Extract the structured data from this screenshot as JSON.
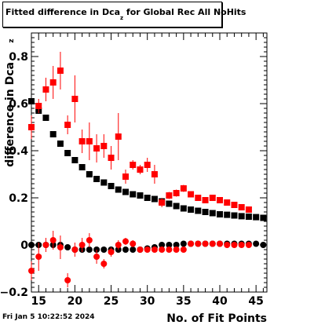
{
  "title": {
    "prefix": "Fitted difference in Dca",
    "subscript": "z",
    "suffix": " for Global Rec All NoHits"
  },
  "timestamp": "Fri Jan  5 10:22:52 2024",
  "colors": {
    "black_series": "#000000",
    "red_series": "#ff0000",
    "axis": "#000000"
  },
  "chart_data": {
    "type": "scatter",
    "title": "Fitted difference in Dca_z for Global Rec All NoHits",
    "xlabel": "No. of Fit Points",
    "ylabel": "difference in Dca",
    "ylabel_superscript": "z",
    "xlim": [
      14,
      46.5
    ],
    "ylim": [
      -0.2,
      0.9
    ],
    "xticks": [
      15,
      20,
      25,
      30,
      35,
      40,
      45
    ],
    "yticks": [
      -0.2,
      0,
      0.2,
      0.4,
      0.6,
      0.8
    ],
    "grid": false,
    "series": [
      {
        "color": "#000000",
        "marker": "square",
        "x": [
          14,
          15,
          16,
          17,
          18,
          19,
          20,
          21,
          22,
          23,
          24,
          25,
          26,
          27,
          28,
          29,
          30,
          31,
          32,
          33,
          34,
          35,
          36,
          37,
          38,
          39,
          40,
          41,
          42,
          43,
          44,
          45,
          46
        ],
        "y": [
          0.61,
          0.57,
          0.54,
          0.47,
          0.43,
          0.39,
          0.36,
          0.33,
          0.3,
          0.28,
          0.265,
          0.25,
          0.235,
          0.225,
          0.215,
          0.21,
          0.2,
          0.195,
          0.185,
          0.175,
          0.165,
          0.155,
          0.15,
          0.145,
          0.14,
          0.135,
          0.13,
          0.128,
          0.125,
          0.122,
          0.12,
          0.118,
          0.115
        ],
        "err": [
          0,
          0,
          0,
          0,
          0,
          0,
          0,
          0,
          0,
          0,
          0,
          0,
          0,
          0,
          0,
          0,
          0,
          0,
          0,
          0,
          0,
          0,
          0,
          0,
          0,
          0,
          0,
          0,
          0,
          0,
          0,
          0,
          0
        ]
      },
      {
        "color": "#ff0000",
        "marker": "square",
        "x": [
          14,
          15,
          16,
          17,
          18,
          19,
          20,
          21,
          22,
          23,
          24,
          25,
          26,
          27,
          28,
          29,
          30,
          31,
          32,
          33,
          34,
          35,
          36,
          37,
          38,
          39,
          40,
          41,
          42,
          43,
          44
        ],
        "y": [
          0.5,
          0.59,
          0.66,
          0.69,
          0.74,
          0.51,
          0.62,
          0.44,
          0.44,
          0.41,
          0.42,
          0.37,
          0.46,
          0.29,
          0.34,
          0.32,
          0.34,
          0.3,
          0.18,
          0.21,
          0.22,
          0.24,
          0.215,
          0.2,
          0.19,
          0.2,
          0.19,
          0.18,
          0.17,
          0.16,
          0.15
        ],
        "err": [
          0.05,
          0.03,
          0.05,
          0.07,
          0.08,
          0.04,
          0.1,
          0.05,
          0.08,
          0.06,
          0.05,
          0.05,
          0.1,
          0.03,
          0.02,
          0.02,
          0.03,
          0.04,
          0.02,
          0.015,
          0.015,
          0.015,
          0.01,
          0.01,
          0.01,
          0.01,
          0.01,
          0.01,
          0.01,
          0.01,
          0.01
        ]
      },
      {
        "color": "#000000",
        "marker": "circle",
        "x": [
          14,
          15,
          16,
          17,
          18,
          19,
          20,
          21,
          22,
          23,
          24,
          25,
          26,
          27,
          28,
          29,
          30,
          31,
          32,
          33,
          34,
          35,
          36,
          37,
          38,
          39,
          40,
          41,
          42,
          43,
          44,
          45,
          46
        ],
        "y": [
          0.0,
          0.0,
          0.0,
          0.0,
          0.0,
          -0.01,
          -0.02,
          -0.02,
          -0.02,
          -0.02,
          -0.02,
          -0.02,
          -0.02,
          -0.02,
          -0.02,
          -0.02,
          -0.015,
          -0.01,
          0.0,
          0.0,
          0.0,
          0.005,
          0.005,
          0.005,
          0.005,
          0.005,
          0.005,
          0.005,
          0.005,
          0.005,
          0.005,
          0.005,
          0.0
        ],
        "err": [
          0,
          0,
          0,
          0,
          0,
          0,
          0,
          0,
          0,
          0,
          0,
          0,
          0,
          0,
          0,
          0,
          0,
          0,
          0,
          0,
          0,
          0,
          0,
          0,
          0,
          0,
          0,
          0,
          0,
          0,
          0,
          0,
          0
        ]
      },
      {
        "color": "#ff0000",
        "marker": "circle",
        "x": [
          14,
          15,
          16,
          17,
          18,
          19,
          20,
          21,
          22,
          23,
          24,
          25,
          26,
          27,
          28,
          29,
          30,
          31,
          32,
          33,
          34,
          35,
          36,
          37,
          38,
          39,
          40,
          41,
          42,
          43,
          44
        ],
        "y": [
          -0.11,
          -0.05,
          0.0,
          0.02,
          -0.01,
          -0.15,
          -0.02,
          0.0,
          0.02,
          -0.05,
          -0.08,
          -0.03,
          0.0,
          0.015,
          0.005,
          -0.02,
          -0.02,
          -0.02,
          -0.02,
          -0.02,
          -0.02,
          -0.02,
          0.005,
          0.005,
          0.005,
          0.005,
          0.005,
          0.0,
          0.0,
          0.0,
          0.0
        ],
        "err": [
          0.04,
          0.06,
          0.03,
          0.04,
          0.05,
          0.03,
          0.03,
          0.03,
          0.03,
          0.03,
          0.02,
          0.02,
          0.02,
          0.015,
          0.015,
          0.01,
          0.01,
          0.01,
          0.01,
          0.01,
          0.01,
          0.01,
          0.01,
          0.01,
          0.01,
          0.01,
          0.01,
          0.01,
          0.01,
          0.01,
          0.01
        ]
      }
    ]
  }
}
